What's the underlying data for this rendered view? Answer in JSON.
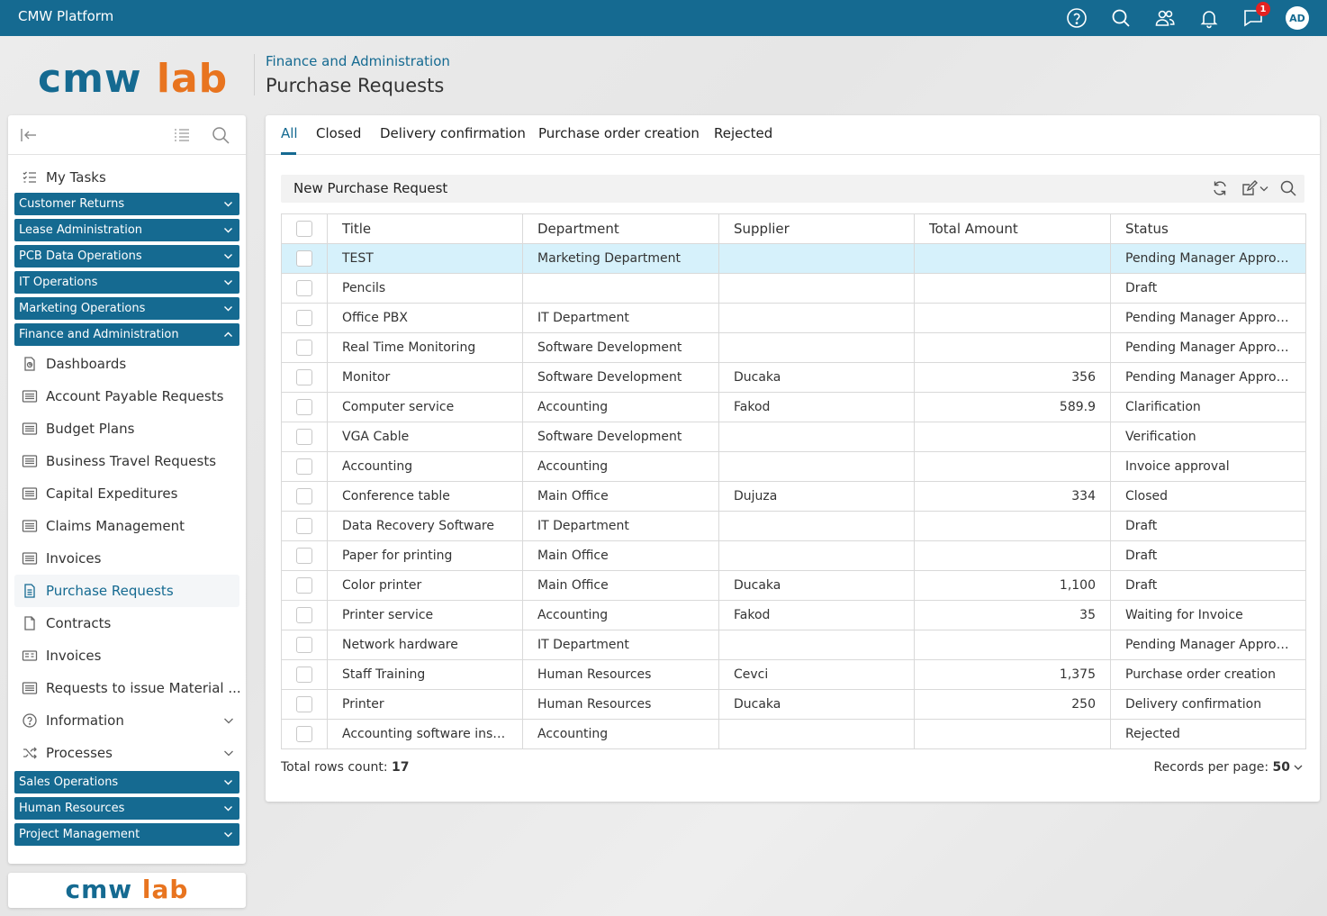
{
  "topbar": {
    "app_title": "CMW Platform",
    "icons": [
      "help-icon",
      "search-icon",
      "users-icon",
      "bell-icon",
      "chat-icon"
    ],
    "notification_count": "1",
    "avatar_initials": "AD"
  },
  "logo": {
    "cmw": "cmw",
    "lab": "lab"
  },
  "header": {
    "breadcrumb": "Finance and Administration",
    "title": "Purchase Requests"
  },
  "sidebar": {
    "my_tasks": "My Tasks",
    "groups_top": [
      "Customer Returns",
      "Lease Administration",
      "PCB Data Operations",
      "IT Operations",
      "Marketing Operations",
      "Finance and Administration"
    ],
    "items": [
      "Dashboards",
      "Account Payable Requests",
      "Budget Plans",
      "Business Travel Requests",
      "Capital Expeditures",
      "Claims Management",
      "Invoices",
      "Purchase Requests",
      "Contracts",
      "Invoices",
      "Requests to issue Material ...",
      "Information",
      "Processes"
    ],
    "groups_bottom": [
      "Sales Operations",
      "Human Resources",
      "Project Management"
    ],
    "footer_logo": {
      "cmw": "cmw",
      "lab": "lab"
    }
  },
  "tabs": [
    "All",
    "Closed",
    "Delivery confirmation",
    "Purchase order creation",
    "Rejected"
  ],
  "toolbar": {
    "new_label": "New Purchase Request"
  },
  "table": {
    "columns": [
      "Title",
      "Department",
      "Supplier",
      "Total Amount",
      "Status"
    ],
    "rows": [
      [
        "TEST",
        "Marketing Department",
        "",
        "",
        "Pending Manager Approval"
      ],
      [
        "Pencils",
        "",
        "",
        "",
        "Draft"
      ],
      [
        "Office PBX",
        "IT Department",
        "",
        "",
        "Pending Manager Approval"
      ],
      [
        "Real Time Monitoring",
        "Software Development",
        "",
        "",
        "Pending Manager Approval"
      ],
      [
        "Monitor",
        "Software Development",
        "Ducaka",
        "356",
        "Pending Manager Approval"
      ],
      [
        "Computer service",
        "Accounting",
        "Fakod",
        "589.9",
        "Clarification"
      ],
      [
        "VGA Cable",
        "Software Development",
        "",
        "",
        "Verification"
      ],
      [
        "Accounting",
        "Accounting",
        "",
        "",
        "Invoice approval"
      ],
      [
        "Conference table",
        "Main Office",
        "Dujuza",
        "334",
        "Closed"
      ],
      [
        "Data Recovery Software",
        "IT Department",
        "",
        "",
        "Draft"
      ],
      [
        "Paper for printing",
        "Main Office",
        "",
        "",
        "Draft"
      ],
      [
        "Color printer",
        "Main Office",
        "Ducaka",
        "1,100",
        "Draft"
      ],
      [
        "Printer service",
        "Accounting",
        "Fakod",
        "35",
        "Waiting for Invoice"
      ],
      [
        "Network hardware",
        "IT Department",
        "",
        "",
        "Pending Manager Approval"
      ],
      [
        "Staff Training",
        "Human Resources",
        "Cevci",
        "1,375",
        "Purchase order creation"
      ],
      [
        "Printer",
        "Human Resources",
        "Ducaka",
        "250",
        "Delivery confirmation"
      ],
      [
        "Accounting software insta...",
        "Accounting",
        "",
        "",
        "Rejected"
      ]
    ]
  },
  "footer": {
    "count_label": "Total rows count:",
    "count_value": "17",
    "rpp_label": "Records per page:",
    "rpp_value": "50"
  },
  "colors": {
    "brand": "#156a91",
    "accent": "#e8741f",
    "selected_row": "#d6f1fb"
  }
}
